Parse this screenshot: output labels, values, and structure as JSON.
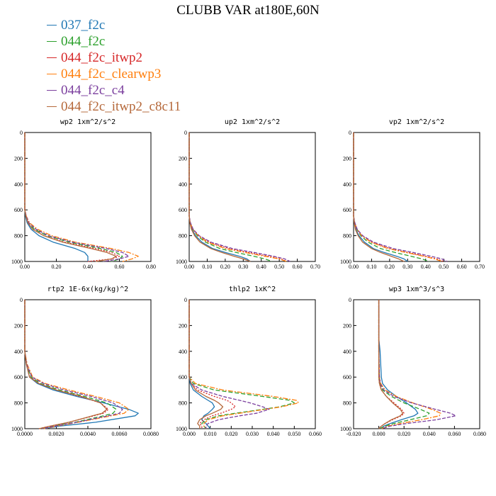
{
  "title": "CLUBB VAR at180E,60N",
  "colors": {
    "037_f2c": "#1f77b4",
    "044_f2c": "#2ca02c",
    "044_f2c_itwp2": "#d62728",
    "044_f2c_clearwp3": "#ff7f0e",
    "044_f2c_c4": "#7b3f9e",
    "044_f2c_itwp2_c8c11": "#b5683a"
  },
  "legend": [
    {
      "name": "037_f2c",
      "color": "#1f77b4"
    },
    {
      "name": "044_f2c",
      "color": "#2ca02c"
    },
    {
      "name": "044_f2c_itwp2",
      "color": "#d62728"
    },
    {
      "name": "044_f2c_clearwp3",
      "color": "#ff7f0e"
    },
    {
      "name": "044_f2c_c4",
      "color": "#7b3f9e"
    },
    {
      "name": "044_f2c_itwp2_c8c11",
      "color": "#b5683a"
    }
  ],
  "chart_data": [
    {
      "type": "line",
      "title": "wp2  1xm^2/s^2",
      "xlim": [
        0,
        0.8
      ],
      "ylim": [
        1000,
        0
      ],
      "xticks": [
        "0.00",
        "0.20",
        "0.40",
        "0.60",
        "0.80"
      ],
      "yticks": [
        "0",
        "200",
        "400",
        "600",
        "800",
        "1000"
      ],
      "y": [
        0,
        600,
        650,
        700,
        750,
        800,
        850,
        900,
        930,
        960,
        980,
        1000
      ],
      "series": [
        {
          "name": "037_f2c",
          "values": [
            0,
            0,
            0.005,
            0.015,
            0.04,
            0.09,
            0.18,
            0.32,
            0.38,
            0.4,
            0.4,
            0.4
          ]
        },
        {
          "name": "044_f2c",
          "values": [
            0,
            0,
            0.008,
            0.02,
            0.06,
            0.14,
            0.28,
            0.48,
            0.58,
            0.62,
            0.6,
            0.55
          ]
        },
        {
          "name": "044_f2c_itwp2",
          "values": [
            0,
            0,
            0.008,
            0.02,
            0.05,
            0.12,
            0.25,
            0.45,
            0.55,
            0.6,
            0.55,
            0.4
          ]
        },
        {
          "name": "044_f2c_clearwp3",
          "values": [
            0,
            0,
            0.01,
            0.03,
            0.08,
            0.17,
            0.32,
            0.55,
            0.66,
            0.72,
            0.68,
            0.62
          ]
        },
        {
          "name": "044_f2c_c4",
          "values": [
            0,
            0,
            0.01,
            0.025,
            0.07,
            0.15,
            0.3,
            0.52,
            0.62,
            0.66,
            0.6,
            0.5
          ]
        },
        {
          "name": "044_f2c_itwp2_c8c11",
          "values": [
            0,
            0,
            0.007,
            0.02,
            0.05,
            0.12,
            0.24,
            0.42,
            0.52,
            0.58,
            0.55,
            0.45
          ]
        }
      ]
    },
    {
      "type": "line",
      "title": "up2  1xm^2/s^2",
      "xlim": [
        0,
        0.7
      ],
      "ylim": [
        1000,
        0
      ],
      "xticks": [
        "0.00",
        "0.10",
        "0.20",
        "0.30",
        "0.40",
        "0.50",
        "0.60",
        "0.70"
      ],
      "yticks": [
        "0",
        "200",
        "400",
        "600",
        "800",
        "1000"
      ],
      "y": [
        0,
        650,
        700,
        750,
        800,
        850,
        900,
        930,
        960,
        980,
        1000
      ],
      "series": [
        {
          "name": "037_f2c",
          "values": [
            0,
            0,
            0.005,
            0.015,
            0.035,
            0.07,
            0.13,
            0.2,
            0.28,
            0.32,
            0.34
          ]
        },
        {
          "name": "044_f2c",
          "values": [
            0,
            0,
            0.006,
            0.02,
            0.045,
            0.09,
            0.17,
            0.26,
            0.36,
            0.42,
            0.46
          ]
        },
        {
          "name": "044_f2c_itwp2",
          "values": [
            0,
            0,
            0.005,
            0.02,
            0.05,
            0.11,
            0.22,
            0.33,
            0.44,
            0.51,
            0.54
          ]
        },
        {
          "name": "044_f2c_clearwp3",
          "values": [
            0,
            0,
            0.006,
            0.02,
            0.05,
            0.1,
            0.2,
            0.31,
            0.42,
            0.5,
            0.54
          ]
        },
        {
          "name": "044_f2c_c4",
          "values": [
            0,
            0,
            0.007,
            0.022,
            0.055,
            0.12,
            0.24,
            0.36,
            0.47,
            0.53,
            0.56
          ]
        },
        {
          "name": "044_f2c_itwp2_c8c11",
          "values": [
            0,
            0,
            0.004,
            0.012,
            0.03,
            0.06,
            0.12,
            0.18,
            0.25,
            0.3,
            0.34
          ]
        }
      ]
    },
    {
      "type": "line",
      "title": "vp2  1xm^2/s^2",
      "xlim": [
        0,
        0.7
      ],
      "ylim": [
        1000,
        0
      ],
      "xticks": [
        "0.00",
        "0.10",
        "0.20",
        "0.30",
        "0.40",
        "0.50",
        "0.60",
        "0.70"
      ],
      "yticks": [
        "0",
        "200",
        "400",
        "600",
        "800",
        "1000"
      ],
      "y": [
        0,
        650,
        700,
        750,
        800,
        850,
        900,
        930,
        960,
        980,
        1000
      ],
      "series": [
        {
          "name": "037_f2c",
          "values": [
            0,
            0,
            0.005,
            0.012,
            0.03,
            0.06,
            0.11,
            0.17,
            0.24,
            0.28,
            0.3
          ]
        },
        {
          "name": "044_f2c",
          "values": [
            0,
            0,
            0.006,
            0.018,
            0.04,
            0.08,
            0.15,
            0.23,
            0.32,
            0.38,
            0.42
          ]
        },
        {
          "name": "044_f2c_itwp2",
          "values": [
            0,
            0,
            0.005,
            0.018,
            0.045,
            0.1,
            0.2,
            0.3,
            0.4,
            0.46,
            0.5
          ]
        },
        {
          "name": "044_f2c_clearwp3",
          "values": [
            0,
            0,
            0.006,
            0.02,
            0.045,
            0.095,
            0.19,
            0.29,
            0.39,
            0.45,
            0.49
          ]
        },
        {
          "name": "044_f2c_c4",
          "values": [
            0,
            0,
            0.007,
            0.02,
            0.05,
            0.11,
            0.22,
            0.33,
            0.43,
            0.49,
            0.52
          ]
        },
        {
          "name": "044_f2c_itwp2_c8c11",
          "values": [
            0,
            0,
            0.004,
            0.01,
            0.025,
            0.05,
            0.1,
            0.15,
            0.21,
            0.25,
            0.28
          ]
        }
      ]
    },
    {
      "type": "line",
      "title": "rtp2  1E-6x(kg/kg)^2",
      "xlim": [
        0,
        0.008
      ],
      "ylim": [
        1000,
        0
      ],
      "xticks": [
        "0.0000",
        "0.0020",
        "0.0040",
        "0.0060",
        "0.0080"
      ],
      "yticks": [
        "0",
        "200",
        "400",
        "600",
        "800",
        "1000"
      ],
      "y": [
        0,
        400,
        500,
        600,
        650,
        700,
        750,
        800,
        850,
        880,
        900,
        950,
        980,
        1000
      ],
      "series": [
        {
          "name": "037_f2c",
          "values": [
            0,
            0,
            0.0001,
            0.0003,
            0.0008,
            0.0018,
            0.0033,
            0.005,
            0.0066,
            0.0072,
            0.007,
            0.0045,
            0.0022,
            0.0012
          ]
        },
        {
          "name": "044_f2c",
          "values": [
            0,
            0,
            0.0001,
            0.0004,
            0.001,
            0.0022,
            0.0038,
            0.0052,
            0.0058,
            0.0056,
            0.005,
            0.0032,
            0.0018,
            0.001
          ]
        },
        {
          "name": "044_f2c_itwp2",
          "values": [
            0,
            0,
            0.0001,
            0.0003,
            0.0009,
            0.002,
            0.0035,
            0.0048,
            0.0053,
            0.005,
            0.0044,
            0.0028,
            0.0016,
            0.0009
          ]
        },
        {
          "name": "044_f2c_clearwp3",
          "values": [
            0,
            0,
            0.00015,
            0.0005,
            0.0013,
            0.0028,
            0.0045,
            0.006,
            0.0066,
            0.0063,
            0.0055,
            0.0034,
            0.002,
            0.0012
          ]
        },
        {
          "name": "044_f2c_c4",
          "values": [
            0,
            0,
            0.00012,
            0.00045,
            0.0012,
            0.0025,
            0.0042,
            0.0056,
            0.0062,
            0.006,
            0.0053,
            0.0033,
            0.0019,
            0.0011
          ]
        },
        {
          "name": "044_f2c_itwp2_c8c11",
          "values": [
            0,
            0,
            0.0001,
            0.0003,
            0.0009,
            0.002,
            0.0036,
            0.0048,
            0.0052,
            0.0049,
            0.0043,
            0.0028,
            0.0016,
            0.0009
          ]
        }
      ]
    },
    {
      "type": "line",
      "title": "thlp2  1xK^2",
      "xlim": [
        0,
        0.06
      ],
      "ylim": [
        1000,
        0
      ],
      "xticks": [
        "0.000",
        "0.010",
        "0.020",
        "0.030",
        "0.040",
        "0.050",
        "0.060"
      ],
      "yticks": [
        "0",
        "200",
        "400",
        "600",
        "800",
        "1000"
      ],
      "y": [
        0,
        600,
        650,
        700,
        750,
        780,
        800,
        830,
        850,
        880,
        900,
        930,
        960,
        980,
        1000
      ],
      "series": [
        {
          "name": "037_f2c",
          "values": [
            0,
            0,
            0.0005,
            0.002,
            0.006,
            0.009,
            0.011,
            0.012,
            0.011,
            0.009,
            0.007,
            0.006,
            0.008,
            0.009,
            0.01
          ]
        },
        {
          "name": "044_f2c",
          "values": [
            0,
            0,
            0.002,
            0.012,
            0.035,
            0.048,
            0.05,
            0.043,
            0.035,
            0.022,
            0.014,
            0.008,
            0.006,
            0.007,
            0.008
          ]
        },
        {
          "name": "044_f2c_itwp2",
          "values": [
            0,
            0,
            0.001,
            0.004,
            0.012,
            0.018,
            0.02,
            0.022,
            0.02,
            0.015,
            0.011,
            0.007,
            0.005,
            0.006,
            0.006
          ]
        },
        {
          "name": "044_f2c_clearwp3",
          "values": [
            0,
            0,
            0.003,
            0.016,
            0.04,
            0.051,
            0.052,
            0.044,
            0.036,
            0.024,
            0.016,
            0.009,
            0.007,
            0.007,
            0.008
          ]
        },
        {
          "name": "044_f2c_c4",
          "values": [
            0,
            0,
            0.001,
            0.006,
            0.016,
            0.024,
            0.029,
            0.035,
            0.038,
            0.032,
            0.024,
            0.014,
            0.009,
            0.008,
            0.008
          ]
        },
        {
          "name": "044_f2c_itwp2_c8c11",
          "values": [
            0,
            0,
            0.001,
            0.003,
            0.008,
            0.012,
            0.014,
            0.016,
            0.015,
            0.011,
            0.008,
            0.005,
            0.004,
            0.005,
            0.005
          ]
        }
      ]
    },
    {
      "type": "line",
      "title": "wp3  1xm^3/s^3",
      "xlim": [
        -0.02,
        0.08
      ],
      "ylim": [
        1000,
        0
      ],
      "xticks": [
        "-0.020",
        "0.000",
        "0.020",
        "0.040",
        "0.060",
        "0.080"
      ],
      "yticks": [
        "0",
        "200",
        "400",
        "600",
        "800",
        "1000"
      ],
      "y": [
        0,
        300,
        400,
        600,
        650,
        700,
        750,
        800,
        850,
        880,
        900,
        930,
        960,
        980,
        1000
      ],
      "series": [
        {
          "name": "037_f2c",
          "values": [
            0,
            0,
            0.001,
            0.002,
            0.003,
            0.007,
            0.014,
            0.022,
            0.029,
            0.031,
            0.028,
            0.018,
            0.009,
            0.004,
            0.001
          ]
        },
        {
          "name": "044_f2c",
          "values": [
            0,
            0,
            0,
            0.0005,
            0.001,
            0.003,
            0.01,
            0.02,
            0.033,
            0.04,
            0.038,
            0.025,
            0.012,
            0.005,
            0.001
          ]
        },
        {
          "name": "044_f2c_itwp2",
          "values": [
            0,
            0,
            0,
            0,
            0.0005,
            0.002,
            0.006,
            0.012,
            0.018,
            0.02,
            0.018,
            0.011,
            0.005,
            0.002,
            0
          ]
        },
        {
          "name": "044_f2c_clearwp3",
          "values": [
            0,
            0,
            0,
            0.0005,
            0.0015,
            0.005,
            0.014,
            0.027,
            0.042,
            0.049,
            0.048,
            0.034,
            0.017,
            0.007,
            0.002
          ]
        },
        {
          "name": "044_f2c_c4",
          "values": [
            0,
            0,
            0,
            0.0005,
            0.001,
            0.004,
            0.012,
            0.026,
            0.045,
            0.057,
            0.061,
            0.046,
            0.022,
            0.009,
            0.002
          ]
        },
        {
          "name": "044_f2c_itwp2_c8c11",
          "values": [
            0,
            0,
            0,
            0,
            0.0005,
            0.002,
            0.006,
            0.011,
            0.017,
            0.019,
            0.017,
            0.01,
            0.005,
            0.002,
            0
          ]
        }
      ]
    }
  ]
}
